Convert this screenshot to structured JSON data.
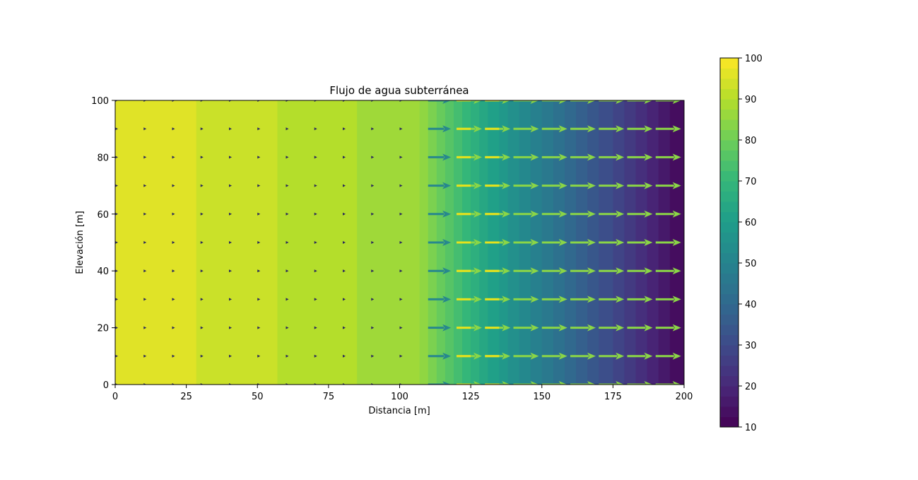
{
  "chart_data": {
    "type": "heatmap",
    "subtype": "filled-contour-with-quiver",
    "title": "Flujo de agua subterránea",
    "xlabel": "Distancia [m]",
    "ylabel": "Elevación [m]",
    "xlim": [
      0,
      200
    ],
    "ylim": [
      0,
      100
    ],
    "x_ticks": [
      "0",
      "25",
      "50",
      "75",
      "100",
      "125",
      "150",
      "175",
      "200"
    ],
    "y_ticks": [
      "0",
      "20",
      "40",
      "60",
      "80",
      "100"
    ],
    "colormap": "viridis",
    "colorbar": {
      "min": 10,
      "max": 100,
      "ticks": [
        "10",
        "20",
        "30",
        "40",
        "50",
        "60",
        "70",
        "80",
        "90",
        "100"
      ]
    },
    "head_profile": {
      "x": [
        0,
        28.5,
        57,
        85,
        107,
        110,
        113,
        116,
        119,
        122,
        125,
        128,
        131,
        135,
        138,
        142,
        146,
        150,
        154,
        158,
        162,
        166,
        170,
        175,
        179,
        183,
        187,
        191,
        195,
        200
      ],
      "h": [
        96,
        93,
        90,
        87,
        85,
        82,
        79,
        76,
        73,
        70,
        67,
        64,
        61,
        58,
        55,
        52,
        49,
        46,
        43,
        40,
        37,
        34,
        31,
        28,
        25,
        22,
        19,
        16,
        13,
        10
      ]
    },
    "quiver": {
      "x": [
        0,
        10,
        20,
        30,
        40,
        50,
        60,
        70,
        80,
        90,
        100,
        110,
        120,
        130,
        140,
        150,
        160,
        170,
        180,
        190,
        200
      ],
      "y": [
        0,
        10,
        20,
        30,
        40,
        50,
        60,
        70,
        80,
        90,
        100
      ],
      "u": [
        0.04,
        0.08,
        0.08,
        0.08,
        0.08,
        0.08,
        0.08,
        0.08,
        0.08,
        0.08,
        0.04,
        1.8,
        2.0,
        2.0,
        2.0,
        2.0,
        2.0,
        2.0,
        2.0,
        2.0,
        2.0
      ],
      "head_color": "#2b2a5c",
      "mid_color": "#27878e",
      "high_color": "#8bd646",
      "lead_color": "#e6e21c"
    },
    "grid": false,
    "legend": "none"
  }
}
